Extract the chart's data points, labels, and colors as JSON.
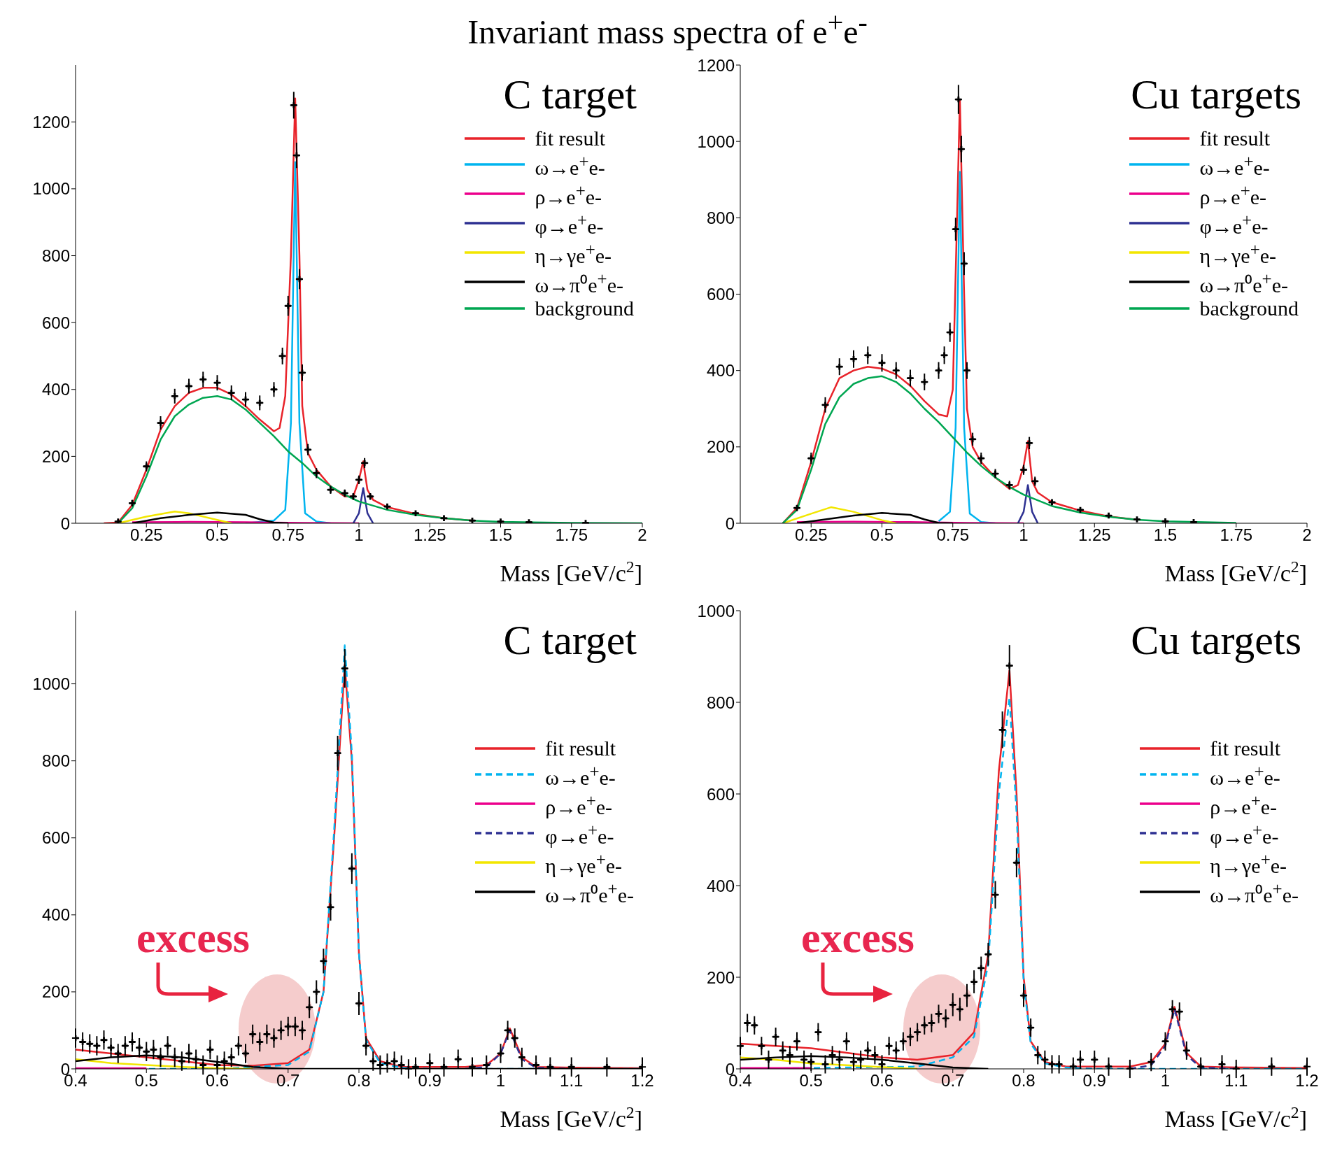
{
  "chart_data": [
    {
      "type": "line",
      "title": "C target",
      "xlabel": "Mass [GeV/c$^{2}$]",
      "xlim": [
        0,
        2
      ],
      "xticks": [
        0.25,
        0.5,
        0.75,
        1,
        1.25,
        1.5,
        1.75,
        2
      ],
      "ylim": [
        0,
        1370
      ],
      "yticks": [
        0,
        200,
        400,
        600,
        800,
        1000,
        1200
      ],
      "legend": "top right",
      "annotations": [
        "Invariant mass spectra of e$^{+}$e$^{-}$"
      ],
      "series": [
        {
          "type": "scatter",
          "color": "#000000",
          "marker": "cross",
          "xerrors": [
            0.0125,
            0.0125,
            0.0125,
            0.0125,
            0.0125,
            0.0125,
            0.0125,
            0.0125,
            0.0125,
            0.0125,
            0.0125,
            0.0125,
            0.0125,
            0.0125,
            0.0125,
            0.0125,
            0.0125,
            0.0125,
            0.0125,
            0.0125,
            0.0125,
            0.0125,
            0.0125,
            0.0125,
            0.0125,
            0.0125,
            0.0125,
            0.0125,
            0.0125,
            0.0125,
            0.0125,
            0.0125,
            0.0125
          ],
          "x": [
            0.15,
            0.2,
            0.25,
            0.3,
            0.35,
            0.4,
            0.45,
            0.5,
            0.55,
            0.6,
            0.65,
            0.7,
            0.73,
            0.75,
            0.77,
            0.78,
            0.79,
            0.8,
            0.82,
            0.85,
            0.9,
            0.95,
            0.98,
            1.0,
            1.02,
            1.04,
            1.1,
            1.2,
            1.3,
            1.4,
            1.5,
            1.6,
            1.8
          ],
          "values": [
            5,
            60,
            170,
            300,
            380,
            410,
            430,
            420,
            390,
            370,
            360,
            400,
            500,
            650,
            1250,
            1100,
            730,
            450,
            220,
            150,
            100,
            90,
            80,
            130,
            180,
            80,
            50,
            30,
            15,
            8,
            5,
            3,
            1
          ],
          "errors": [
            3,
            10,
            15,
            20,
            22,
            22,
            23,
            23,
            22,
            22,
            22,
            22,
            25,
            30,
            40,
            38,
            30,
            25,
            17,
            15,
            12,
            11,
            10,
            13,
            15,
            10,
            8,
            6,
            5,
            3,
            3,
            2,
            1
          ]
        },
        {
          "name": "fit result",
          "color": "#e8232a",
          "x": [
            0.1,
            0.15,
            0.2,
            0.25,
            0.3,
            0.35,
            0.4,
            0.45,
            0.5,
            0.55,
            0.6,
            0.65,
            0.7,
            0.72,
            0.74,
            0.76,
            0.775,
            0.79,
            0.8,
            0.82,
            0.85,
            0.9,
            0.95,
            0.98,
            1.0,
            1.015,
            1.03,
            1.05,
            1.1,
            1.2,
            1.3,
            1.4
          ],
          "values": [
            0,
            2,
            55,
            160,
            280,
            350,
            390,
            405,
            405,
            385,
            350,
            310,
            275,
            285,
            380,
            800,
            1270,
            800,
            350,
            210,
            160,
            110,
            80,
            80,
            130,
            185,
            100,
            70,
            48,
            28,
            15,
            8
          ]
        },
        {
          "name": "ω→e$^{+}$e-",
          "color": "#00b4ef",
          "x": [
            0.6,
            0.7,
            0.74,
            0.76,
            0.775,
            0.79,
            0.81,
            0.85,
            0.9
          ],
          "values": [
            0,
            8,
            40,
            300,
            1080,
            300,
            30,
            5,
            0
          ]
        },
        {
          "name": "ρ→e$^{+}$e-",
          "color": "#ec008c",
          "x": [
            0.2,
            0.4,
            0.6,
            0.8,
            1.0
          ],
          "values": [
            3,
            4,
            3,
            1,
            0
          ]
        },
        {
          "name": "φ→e$^{+}$e-",
          "color": "#2e3192",
          "x": [
            0.98,
            1.0,
            1.015,
            1.03,
            1.05
          ],
          "values": [
            0,
            30,
            105,
            30,
            0
          ]
        },
        {
          "name": "η→γe$^{+}$e-",
          "color": "#f2e600",
          "x": [
            0.15,
            0.25,
            0.35,
            0.4,
            0.5,
            0.55
          ],
          "values": [
            0,
            20,
            35,
            30,
            10,
            0
          ]
        },
        {
          "name": "ω→π⁰e$^{+}$e-",
          "color": "#000000",
          "x": [
            0.2,
            0.3,
            0.4,
            0.5,
            0.6,
            0.65,
            0.7,
            0.75
          ],
          "values": [
            0,
            15,
            25,
            32,
            25,
            12,
            2,
            0
          ]
        },
        {
          "name": "background",
          "color": "#00a651",
          "x": [
            0.15,
            0.2,
            0.25,
            0.3,
            0.35,
            0.4,
            0.45,
            0.5,
            0.55,
            0.6,
            0.65,
            0.7,
            0.75,
            0.8,
            0.85,
            0.9,
            0.95,
            1.0,
            1.1,
            1.2,
            1.3,
            1.4,
            1.5,
            1.75,
            2
          ],
          "values": [
            0,
            45,
            140,
            250,
            320,
            355,
            375,
            380,
            370,
            340,
            300,
            260,
            215,
            180,
            140,
            110,
            85,
            65,
            40,
            25,
            15,
            8,
            4,
            1,
            0
          ]
        }
      ]
    },
    {
      "type": "line",
      "title": "Cu targets",
      "xlabel": "Mass [GeV/c$^{2}$]",
      "xlim": [
        0,
        2
      ],
      "xticks": [
        0.25,
        0.5,
        0.75,
        1,
        1.25,
        1.5,
        1.75,
        2
      ],
      "ylim": [
        0,
        1200
      ],
      "yticks": [
        0,
        200,
        400,
        600,
        800,
        1000,
        1200
      ],
      "legend": "top right",
      "series": [
        {
          "type": "scatter",
          "color": "#000000",
          "marker": "cross",
          "xerrors": [
            0.0125,
            0.0125,
            0.0125,
            0.0125,
            0.0125,
            0.0125,
            0.0125,
            0.0125,
            0.0125,
            0.0125,
            0.0125,
            0.0125,
            0.0125,
            0.0125,
            0.0125,
            0.0125,
            0.0125,
            0.0125,
            0.0125,
            0.0125,
            0.0125,
            0.0125,
            0.0125,
            0.0125,
            0.0125,
            0.0125,
            0.0125,
            0.0125,
            0.0125,
            0.0125,
            0.0125
          ],
          "x": [
            0.2,
            0.25,
            0.3,
            0.35,
            0.4,
            0.45,
            0.5,
            0.55,
            0.6,
            0.65,
            0.7,
            0.72,
            0.74,
            0.76,
            0.77,
            0.78,
            0.79,
            0.8,
            0.82,
            0.85,
            0.9,
            0.95,
            1.0,
            1.02,
            1.04,
            1.1,
            1.2,
            1.3,
            1.4,
            1.5,
            1.6
          ],
          "values": [
            40,
            170,
            310,
            410,
            430,
            440,
            420,
            400,
            380,
            370,
            400,
            440,
            500,
            770,
            1110,
            980,
            680,
            400,
            220,
            170,
            130,
            100,
            140,
            210,
            110,
            55,
            35,
            20,
            10,
            5,
            3
          ],
          "errors": [
            8,
            15,
            20,
            22,
            23,
            23,
            23,
            22,
            22,
            22,
            22,
            23,
            25,
            30,
            38,
            35,
            30,
            22,
            17,
            15,
            12,
            11,
            13,
            16,
            12,
            8,
            6,
            5,
            3,
            3,
            2
          ]
        },
        {
          "name": "fit result",
          "color": "#e8232a",
          "x": [
            0.15,
            0.2,
            0.25,
            0.3,
            0.35,
            0.4,
            0.45,
            0.5,
            0.55,
            0.6,
            0.65,
            0.7,
            0.73,
            0.75,
            0.765,
            0.775,
            0.79,
            0.8,
            0.82,
            0.85,
            0.9,
            0.95,
            0.98,
            1.0,
            1.015,
            1.03,
            1.05,
            1.1,
            1.2,
            1.3,
            1.4
          ],
          "values": [
            0,
            40,
            160,
            300,
            380,
            400,
            410,
            405,
            390,
            360,
            320,
            285,
            280,
            350,
            800,
            1110,
            600,
            300,
            200,
            160,
            120,
            90,
            100,
            150,
            215,
            110,
            80,
            55,
            33,
            18,
            9
          ]
        },
        {
          "name": "ω→e$^{+}$e-",
          "color": "#00b4ef",
          "x": [
            0.7,
            0.74,
            0.76,
            0.775,
            0.79,
            0.81,
            0.85,
            0.9
          ],
          "values": [
            5,
            30,
            250,
            920,
            250,
            25,
            3,
            0
          ]
        },
        {
          "name": "ρ→e$^{+}$e-",
          "color": "#ec008c",
          "x": [
            0.2,
            0.4,
            0.6,
            0.8,
            1.0
          ],
          "values": [
            3,
            4,
            3,
            1,
            0
          ]
        },
        {
          "name": "φ→e$^{+}$e-",
          "color": "#2e3192",
          "x": [
            0.98,
            1.0,
            1.015,
            1.03,
            1.05
          ],
          "values": [
            0,
            30,
            100,
            30,
            0
          ]
        },
        {
          "name": "η→γe$^{+}$e-",
          "color": "#f2e600",
          "x": [
            0.15,
            0.25,
            0.32,
            0.4,
            0.5,
            0.55
          ],
          "values": [
            0,
            25,
            42,
            30,
            8,
            0
          ]
        },
        {
          "name": "ω→π⁰e$^{+}$e-",
          "color": "#000000",
          "x": [
            0.2,
            0.3,
            0.4,
            0.5,
            0.6,
            0.65,
            0.7,
            0.75
          ],
          "values": [
            0,
            10,
            20,
            27,
            22,
            10,
            1,
            0
          ]
        },
        {
          "name": "background",
          "color": "#00a651",
          "x": [
            0.15,
            0.2,
            0.25,
            0.3,
            0.35,
            0.4,
            0.45,
            0.5,
            0.55,
            0.6,
            0.65,
            0.7,
            0.75,
            0.8,
            0.85,
            0.9,
            0.95,
            1.0,
            1.1,
            1.2,
            1.3,
            1.4,
            1.5,
            1.75
          ],
          "values": [
            0,
            35,
            140,
            260,
            330,
            365,
            380,
            385,
            370,
            340,
            300,
            265,
            225,
            185,
            150,
            120,
            95,
            75,
            45,
            28,
            17,
            9,
            5,
            1
          ]
        }
      ]
    },
    {
      "type": "line",
      "title": "C target",
      "xlabel": "Mass [GeV/c$^{2}$]",
      "xlim": [
        0.4,
        1.2
      ],
      "xticks": [
        0.4,
        0.5,
        0.6,
        0.7,
        0.8,
        0.9,
        1,
        1.1,
        1.2
      ],
      "ylim": [
        0,
        1190
      ],
      "yticks": [
        0,
        200,
        400,
        600,
        800,
        1000
      ],
      "legend": "right",
      "annotations": [
        "excess"
      ],
      "series": [
        {
          "type": "scatter",
          "color": "#000000",
          "marker": "cross",
          "xerrors": [
            0.005,
            0.005,
            0.005,
            0.005,
            0.005,
            0.005,
            0.005,
            0.005,
            0.005,
            0.005,
            0.005,
            0.005,
            0.005,
            0.005,
            0.005,
            0.005,
            0.005,
            0.005,
            0.005,
            0.005,
            0.005,
            0.005,
            0.005,
            0.005,
            0.005,
            0.005,
            0.005,
            0.005,
            0.005,
            0.005,
            0.005,
            0.005,
            0.005,
            0.005,
            0.005,
            0.005,
            0.005,
            0.005,
            0.005,
            0.005,
            0.005,
            0.005,
            0.005,
            0.005,
            0.005,
            0.005,
            0.005,
            0.005,
            0.005,
            0.005,
            0.005,
            0.005,
            0.005,
            0.005,
            0.005,
            0.005,
            0.005,
            0.005,
            0.005,
            0.005,
            0.005,
            0.005,
            0.005
          ],
          "x": [
            0.4,
            0.41,
            0.42,
            0.43,
            0.44,
            0.45,
            0.46,
            0.47,
            0.48,
            0.49,
            0.5,
            0.51,
            0.52,
            0.53,
            0.54,
            0.55,
            0.56,
            0.57,
            0.58,
            0.59,
            0.6,
            0.61,
            0.62,
            0.63,
            0.64,
            0.65,
            0.66,
            0.67,
            0.68,
            0.69,
            0.7,
            0.71,
            0.72,
            0.73,
            0.74,
            0.75,
            0.76,
            0.77,
            0.78,
            0.79,
            0.8,
            0.81,
            0.82,
            0.83,
            0.84,
            0.85,
            0.86,
            0.87,
            0.88,
            0.9,
            0.92,
            0.94,
            0.96,
            0.98,
            1.0,
            1.01,
            1.02,
            1.03,
            1.05,
            1.07,
            1.1,
            1.15,
            1.2
          ],
          "values": [
            80,
            70,
            65,
            60,
            75,
            55,
            40,
            60,
            70,
            55,
            45,
            50,
            30,
            60,
            30,
            20,
            40,
            25,
            10,
            50,
            10,
            20,
            30,
            60,
            40,
            90,
            70,
            90,
            80,
            100,
            110,
            110,
            100,
            160,
            200,
            280,
            420,
            820,
            1040,
            520,
            170,
            60,
            20,
            10,
            15,
            20,
            10,
            0,
            5,
            15,
            5,
            25,
            5,
            10,
            40,
            100,
            80,
            30,
            10,
            5,
            5,
            5,
            5
          ],
          "errors": [
            25,
            25,
            25,
            25,
            25,
            25,
            25,
            25,
            25,
            25,
            25,
            25,
            25,
            25,
            25,
            25,
            25,
            25,
            25,
            25,
            25,
            25,
            25,
            25,
            25,
            25,
            25,
            25,
            25,
            25,
            25,
            25,
            25,
            28,
            30,
            32,
            35,
            45,
            50,
            40,
            30,
            25,
            25,
            25,
            25,
            25,
            25,
            25,
            25,
            25,
            25,
            25,
            25,
            25,
            25,
            25,
            25,
            25,
            25,
            25,
            25,
            25,
            25
          ]
        },
        {
          "name": "fit result",
          "color": "#e8232a",
          "x": [
            0.4,
            0.45,
            0.5,
            0.55,
            0.6,
            0.65,
            0.7,
            0.73,
            0.75,
            0.765,
            0.78,
            0.79,
            0.8,
            0.81,
            0.83,
            0.86,
            0.9,
            0.95,
            0.98,
            1.0,
            1.013,
            1.03,
            1.05,
            1.1,
            1.2
          ],
          "values": [
            50,
            40,
            30,
            20,
            10,
            8,
            15,
            50,
            200,
            600,
            1050,
            800,
            300,
            80,
            20,
            5,
            5,
            5,
            10,
            40,
            105,
            30,
            5,
            3,
            2
          ]
        },
        {
          "name": "ω→e$^{+}$e-",
          "color": "#00b4ef",
          "line_style": "dashed",
          "x": [
            0.4,
            0.6,
            0.7,
            0.73,
            0.75,
            0.765,
            0.78,
            0.79,
            0.8,
            0.81,
            0.83,
            0.86,
            0.9,
            1.2
          ],
          "values": [
            0,
            0,
            10,
            45,
            200,
            620,
            1100,
            820,
            300,
            75,
            15,
            3,
            0,
            0
          ]
        },
        {
          "name": "ρ→e$^{+}$e-",
          "color": "#ec008c",
          "x": [
            0.4,
            0.5
          ],
          "values": [
            2,
            2
          ]
        },
        {
          "name": "φ→e$^{+}$e-",
          "color": "#2e3192",
          "line_style": "dashed",
          "x": [
            0.95,
            0.98,
            1.0,
            1.013,
            1.03,
            1.05,
            1.1
          ],
          "values": [
            0,
            5,
            40,
            100,
            25,
            3,
            0
          ]
        },
        {
          "name": "η→γe$^{+}$e-",
          "color": "#f2e600",
          "x": [
            0.4,
            0.45,
            0.5,
            0.55,
            0.6,
            0.65
          ],
          "values": [
            25,
            15,
            10,
            5,
            2,
            0
          ]
        },
        {
          "name": "ω→π⁰e$^{+}$e-",
          "color": "#000000",
          "x": [
            0.4,
            0.45,
            0.5,
            0.55,
            0.6,
            0.65,
            0.7,
            1.2
          ],
          "values": [
            20,
            30,
            35,
            30,
            18,
            5,
            0,
            0
          ]
        }
      ]
    },
    {
      "type": "line",
      "title": "Cu targets",
      "xlabel": "Mass [GeV/c$^{2}$]",
      "xlim": [
        0.4,
        1.2
      ],
      "xticks": [
        0.4,
        0.5,
        0.6,
        0.7,
        0.8,
        0.9,
        1,
        1.1,
        1.2
      ],
      "ylim": [
        0,
        1000
      ],
      "yticks": [
        0,
        200,
        400,
        600,
        800,
        1000
      ],
      "legend": "right",
      "annotations": [
        "excess"
      ],
      "series": [
        {
          "type": "scatter",
          "color": "#000000",
          "marker": "cross",
          "xerrors": [
            0.005,
            0.005,
            0.005,
            0.005,
            0.005,
            0.005,
            0.005,
            0.005,
            0.005,
            0.005,
            0.005,
            0.005,
            0.005,
            0.005,
            0.005,
            0.005,
            0.005,
            0.005,
            0.005,
            0.005,
            0.005,
            0.005,
            0.005,
            0.005,
            0.005,
            0.005,
            0.005,
            0.005,
            0.005,
            0.005,
            0.005,
            0.005,
            0.005,
            0.005,
            0.005,
            0.005,
            0.005,
            0.005,
            0.005,
            0.005,
            0.005,
            0.005,
            0.005,
            0.005,
            0.005,
            0.005,
            0.005,
            0.005,
            0.005,
            0.005,
            0.005,
            0.005,
            0.005,
            0.005,
            0.005,
            0.005,
            0.005,
            0.005,
            0.005,
            0.005,
            0.005
          ],
          "x": [
            0.4,
            0.41,
            0.42,
            0.43,
            0.44,
            0.45,
            0.46,
            0.47,
            0.48,
            0.49,
            0.5,
            0.51,
            0.52,
            0.53,
            0.54,
            0.55,
            0.56,
            0.57,
            0.58,
            0.59,
            0.6,
            0.61,
            0.62,
            0.63,
            0.64,
            0.65,
            0.66,
            0.67,
            0.68,
            0.69,
            0.7,
            0.71,
            0.72,
            0.73,
            0.74,
            0.75,
            0.76,
            0.77,
            0.78,
            0.79,
            0.8,
            0.81,
            0.82,
            0.83,
            0.84,
            0.85,
            0.87,
            0.88,
            0.9,
            0.92,
            0.95,
            0.98,
            1.0,
            1.01,
            1.02,
            1.03,
            1.05,
            1.08,
            1.1,
            1.15,
            1.2
          ],
          "values": [
            50,
            100,
            95,
            50,
            20,
            70,
            40,
            30,
            60,
            20,
            15,
            80,
            10,
            30,
            20,
            60,
            15,
            20,
            40,
            30,
            10,
            50,
            40,
            60,
            70,
            80,
            95,
            100,
            120,
            110,
            140,
            130,
            160,
            190,
            220,
            250,
            380,
            740,
            880,
            450,
            160,
            90,
            30,
            20,
            10,
            10,
            5,
            20,
            20,
            5,
            0,
            15,
            60,
            130,
            125,
            40,
            5,
            10,
            0,
            5,
            5
          ],
          "errors": [
            20,
            20,
            20,
            20,
            20,
            20,
            20,
            20,
            20,
            20,
            20,
            20,
            20,
            20,
            20,
            20,
            20,
            20,
            20,
            20,
            20,
            20,
            20,
            20,
            20,
            20,
            20,
            20,
            20,
            20,
            25,
            25,
            25,
            25,
            25,
            25,
            30,
            40,
            45,
            32,
            25,
            20,
            20,
            20,
            20,
            20,
            20,
            20,
            20,
            20,
            20,
            20,
            20,
            20,
            20,
            20,
            20,
            20,
            20,
            20,
            20
          ]
        },
        {
          "name": "fit result",
          "color": "#e8232a",
          "x": [
            0.4,
            0.45,
            0.5,
            0.55,
            0.6,
            0.65,
            0.7,
            0.73,
            0.75,
            0.765,
            0.78,
            0.79,
            0.8,
            0.81,
            0.83,
            0.86,
            0.9,
            0.95,
            0.98,
            1.0,
            1.013,
            1.03,
            1.05,
            1.1,
            1.2
          ],
          "values": [
            55,
            50,
            45,
            35,
            25,
            20,
            30,
            80,
            250,
            650,
            870,
            600,
            200,
            60,
            15,
            5,
            5,
            5,
            15,
            55,
            135,
            35,
            5,
            3,
            2
          ]
        },
        {
          "name": "ω→e$^{+}$e-",
          "color": "#00b4ef",
          "line_style": "dashed",
          "x": [
            0.4,
            0.65,
            0.7,
            0.73,
            0.75,
            0.765,
            0.78,
            0.79,
            0.8,
            0.81,
            0.83,
            0.86,
            0.9,
            1.2
          ],
          "values": [
            0,
            5,
            25,
            70,
            230,
            600,
            810,
            560,
            190,
            55,
            12,
            3,
            0,
            0
          ]
        },
        {
          "name": "ρ→e$^{+}$e-",
          "color": "#ec008c",
          "x": [
            0.4,
            0.5
          ],
          "values": [
            2,
            2
          ]
        },
        {
          "name": "φ→e$^{+}$e-",
          "color": "#2e3192",
          "line_style": "dashed",
          "x": [
            0.95,
            0.98,
            1.0,
            1.013,
            1.03,
            1.05,
            1.1
          ],
          "values": [
            0,
            8,
            50,
            130,
            30,
            3,
            0
          ]
        },
        {
          "name": "η→γe$^{+}$e-",
          "color": "#f2e600",
          "x": [
            0.4,
            0.45,
            0.5,
            0.55,
            0.6,
            0.65
          ],
          "values": [
            25,
            20,
            12,
            8,
            4,
            0
          ]
        },
        {
          "name": "ω→π⁰e$^{+}$e-",
          "color": "#000000",
          "x": [
            0.4,
            0.45,
            0.5,
            0.55,
            0.6,
            0.65,
            0.7,
            0.75
          ],
          "values": [
            20,
            25,
            28,
            25,
            20,
            12,
            3,
            0
          ]
        }
      ]
    }
  ]
}
